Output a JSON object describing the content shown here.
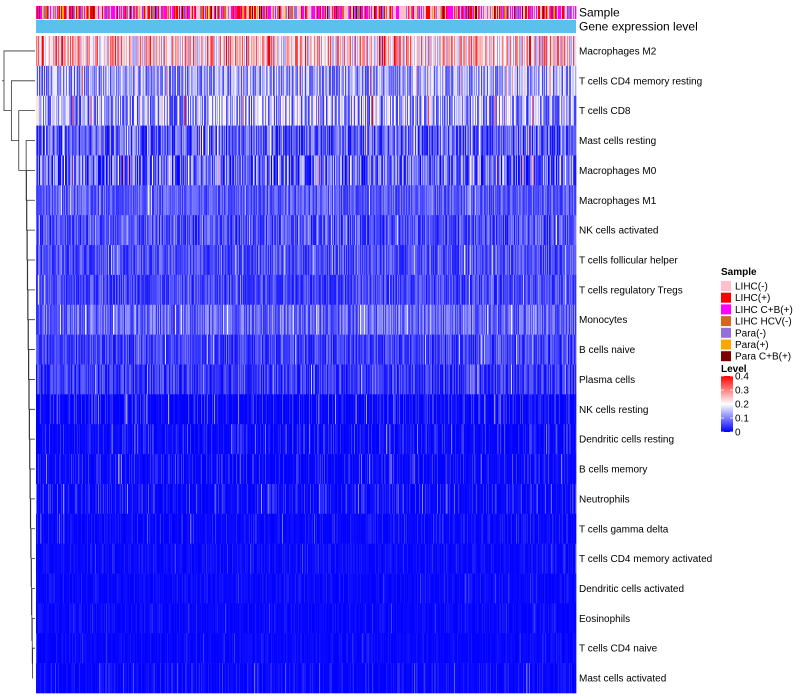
{
  "chart_data": {
    "type": "heatmap",
    "title": "",
    "annotation_tracks": [
      "Sample",
      "Gene expression level"
    ],
    "rows": [
      {
        "name": "Macrophages M2",
        "mean": 0.24,
        "spread": 0.15
      },
      {
        "name": "T cells CD4 memory resting",
        "mean": 0.12,
        "spread": 0.09
      },
      {
        "name": "T cells CD8",
        "mean": 0.13,
        "spread": 0.12
      },
      {
        "name": "Mast cells resting",
        "mean": 0.07,
        "spread": 0.08
      },
      {
        "name": "Macrophages M0",
        "mean": 0.08,
        "spread": 0.1
      },
      {
        "name": "Macrophages M1",
        "mean": 0.07,
        "spread": 0.05
      },
      {
        "name": "NK cells activated",
        "mean": 0.06,
        "spread": 0.06
      },
      {
        "name": "T cells follicular helper",
        "mean": 0.06,
        "spread": 0.05
      },
      {
        "name": "T cells regulatory  Tregs",
        "mean": 0.055,
        "spread": 0.05
      },
      {
        "name": "Monocytes",
        "mean": 0.08,
        "spread": 0.06
      },
      {
        "name": "B cells naive",
        "mean": 0.05,
        "spread": 0.05
      },
      {
        "name": "Plasma cells",
        "mean": 0.045,
        "spread": 0.05
      },
      {
        "name": "NK cells resting",
        "mean": 0.02,
        "spread": 0.05
      },
      {
        "name": "Dendritic cells resting",
        "mean": 0.02,
        "spread": 0.04
      },
      {
        "name": "B cells memory",
        "mean": 0.02,
        "spread": 0.04
      },
      {
        "name": "Neutrophils",
        "mean": 0.02,
        "spread": 0.04
      },
      {
        "name": "T cells gamma delta",
        "mean": 0.01,
        "spread": 0.03
      },
      {
        "name": "T cells CD4 memory activated",
        "mean": 0.01,
        "spread": 0.02
      },
      {
        "name": "Dendritic cells activated",
        "mean": 0.008,
        "spread": 0.02
      },
      {
        "name": "Eosinophils",
        "mean": 0.006,
        "spread": 0.02
      },
      {
        "name": "T cells CD4 naive",
        "mean": 0.006,
        "spread": 0.02
      },
      {
        "name": "Mast cells activated",
        "mean": 0.01,
        "spread": 0.03
      }
    ],
    "sample_count": 540,
    "sample_groups": [
      {
        "name": "LIHC(-)",
        "color": "#ffc0cb",
        "weight": 0.3
      },
      {
        "name": "LIHC(+)",
        "color": "#ff0000",
        "weight": 0.14
      },
      {
        "name": "LIHC C+B(+)",
        "color": "#ff00ff",
        "weight": 0.24
      },
      {
        "name": "LIHC HCV(-)",
        "color": "#d2691e",
        "weight": 0.06
      },
      {
        "name": "Para(-)",
        "color": "#9370db",
        "weight": 0.12
      },
      {
        "name": "Para(+)",
        "color": "#ffa500",
        "weight": 0.08
      },
      {
        "name": "Para C+B(+)",
        "color": "#800000",
        "weight": 0.06
      }
    ],
    "gene_expression_color": "#5bc0eb",
    "color_scale": {
      "min": 0,
      "max": 0.4,
      "stops": [
        {
          "value": 0,
          "color": "#0000ff"
        },
        {
          "value": 0.2,
          "color": "#ffffff"
        },
        {
          "value": 0.4,
          "color": "#ff0000"
        }
      ]
    },
    "legends": {
      "sample": {
        "title": "Sample",
        "entries": [
          "LIHC(-)",
          "LIHC(+)",
          "LIHC C+B(+)",
          "LIHC HCV(-)",
          "Para(-)",
          "Para(+)",
          "Para C+B(+)"
        ]
      },
      "level": {
        "title": "Level",
        "ticks": [
          0.4,
          0.3,
          0.2,
          0.1,
          0
        ]
      }
    },
    "row_dendrogram": "left",
    "legend_position": "right"
  }
}
